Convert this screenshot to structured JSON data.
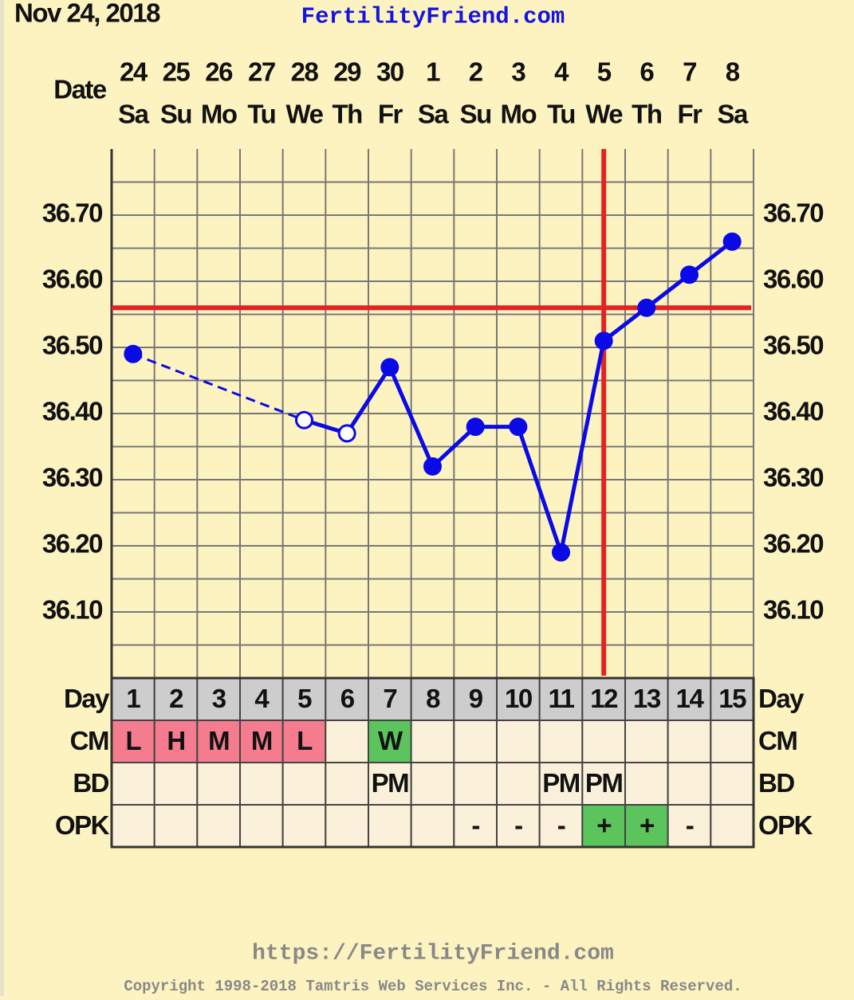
{
  "chart_data": {
    "type": "line",
    "date": "Nov 24, 2018",
    "site": "FertilityFriend.com",
    "date_label": "Date",
    "dates": [
      "24",
      "25",
      "26",
      "27",
      "28",
      "29",
      "30",
      "1",
      "2",
      "3",
      "4",
      "5",
      "6",
      "7",
      "8"
    ],
    "weekdays": [
      "Sa",
      "Su",
      "Mo",
      "Tu",
      "We",
      "Th",
      "Fr",
      "Sa",
      "Su",
      "Mo",
      "Tu",
      "We",
      "Th",
      "Fr",
      "Sa"
    ],
    "day_label": "Day",
    "categories": [
      1,
      2,
      3,
      4,
      5,
      6,
      7,
      8,
      9,
      10,
      11,
      12,
      13,
      14,
      15
    ],
    "series": [
      {
        "color": "#0a0ae6",
        "values": [
          36.49,
          null,
          null,
          null,
          36.39,
          36.37,
          36.47,
          36.32,
          36.38,
          36.38,
          36.19,
          36.51,
          36.56,
          36.61,
          36.66
        ],
        "open": [
          false,
          false,
          false,
          false,
          true,
          true,
          false,
          false,
          false,
          false,
          false,
          false,
          false,
          false,
          false
        ]
      }
    ],
    "ylim": [
      36.0,
      36.8
    ],
    "yticks": [
      {
        "value": 36.1,
        "label": "36.10"
      },
      {
        "value": 36.2,
        "label": "36.20"
      },
      {
        "value": 36.3,
        "label": "36.30"
      },
      {
        "value": 36.4,
        "label": "36.40"
      },
      {
        "value": 36.5,
        "label": "36.50"
      },
      {
        "value": 36.6,
        "label": "36.60"
      },
      {
        "value": 36.7,
        "label": "36.70"
      }
    ],
    "minor_yticks": [
      36.05,
      36.15,
      36.25,
      36.35,
      36.45,
      36.55,
      36.65,
      36.75
    ],
    "grid": true,
    "coverline": 36.56,
    "coverline_color": "#e52222",
    "ovulation_day": 12,
    "rows": [
      {
        "label": "CM",
        "values": [
          "L",
          "H",
          "M",
          "M",
          "L",
          null,
          "W",
          null,
          null,
          null,
          null,
          null,
          null,
          null,
          null
        ],
        "colors": [
          "#f47c8e",
          "#f47c8e",
          "#f47c8e",
          "#f47c8e",
          "#f47c8e",
          null,
          "#5cc45c",
          null,
          null,
          null,
          null,
          null,
          null,
          null,
          null
        ]
      },
      {
        "label": "BD",
        "values": [
          null,
          null,
          null,
          null,
          null,
          null,
          "PM",
          null,
          null,
          null,
          "PM",
          "PM",
          null,
          null,
          null
        ],
        "colors": [
          null,
          null,
          null,
          null,
          null,
          null,
          null,
          null,
          null,
          null,
          null,
          null,
          null,
          null,
          null
        ]
      },
      {
        "label": "OPK",
        "values": [
          null,
          null,
          null,
          null,
          null,
          null,
          null,
          null,
          "-",
          "-",
          "-",
          "+",
          "+",
          "-",
          null
        ],
        "colors": [
          null,
          null,
          null,
          null,
          null,
          null,
          null,
          null,
          null,
          null,
          null,
          "#5cc45c",
          "#5cc45c",
          null,
          null
        ]
      }
    ],
    "url": "https://FertilityFriend.com",
    "copyright": "Copyright 1998-2018 Tamtris Web Services Inc. - All Rights Reserved."
  }
}
